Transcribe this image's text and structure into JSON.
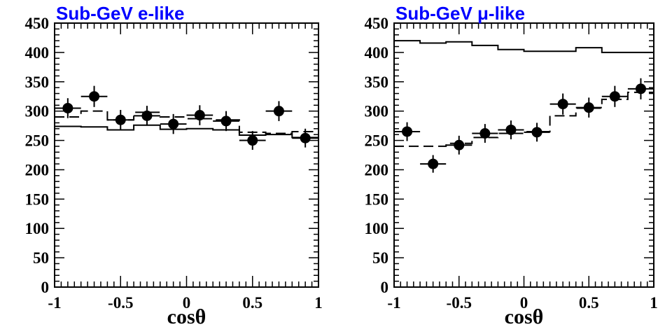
{
  "chart_data": [
    {
      "type": "scatter",
      "title": "Sub-GeV e-like",
      "title_color": "#0000ff",
      "xlabel": "cosθ",
      "ylabel": "",
      "xlim": [
        -1,
        1
      ],
      "ylim": [
        0,
        450
      ],
      "x_ticks": [
        -1,
        -0.5,
        0,
        0.5,
        1
      ],
      "x_tick_labels": [
        "-1",
        "-0.5",
        "0",
        "0.5",
        "1"
      ],
      "y_ticks": [
        0,
        50,
        100,
        150,
        200,
        250,
        300,
        350,
        400,
        450
      ],
      "y_tick_labels": [
        "0",
        "50",
        "100",
        "150",
        "200",
        "250",
        "300",
        "350",
        "400",
        "450"
      ],
      "grid": false,
      "legend": "none",
      "series": [
        {
          "style": "points-with-errorbars",
          "x": [
            -0.9,
            -0.7,
            -0.5,
            -0.3,
            -0.1,
            0.1,
            0.3,
            0.5,
            0.7,
            0.9
          ],
          "y": [
            305,
            325,
            285,
            292,
            278,
            293,
            283,
            250,
            300,
            254
          ],
          "yerr": [
            17,
            18,
            17,
            17,
            17,
            17,
            17,
            16,
            17,
            16
          ]
        },
        {
          "style": "dashed-histogram",
          "bin_edges": [
            -1,
            -0.8,
            -0.6,
            -0.4,
            -0.2,
            0,
            0.2,
            0.4,
            0.6,
            0.8,
            1
          ],
          "values": [
            290,
            300,
            285,
            298,
            290,
            287,
            285,
            264,
            262,
            265
          ]
        },
        {
          "style": "solid-histogram",
          "bin_edges": [
            -1,
            -0.8,
            -0.6,
            -0.4,
            -0.2,
            0,
            0.2,
            0.4,
            0.6,
            0.8,
            1
          ],
          "values": [
            274,
            273,
            268,
            276,
            269,
            270,
            268,
            259,
            260,
            255
          ]
        }
      ]
    },
    {
      "type": "scatter",
      "title": "Sub-GeV μ-like",
      "title_color": "#0000ff",
      "xlabel": "cosθ",
      "ylabel": "",
      "xlim": [
        -1,
        1
      ],
      "ylim": [
        0,
        450
      ],
      "x_ticks": [
        -1,
        -0.5,
        0,
        0.5,
        1
      ],
      "x_tick_labels": [
        "-1",
        "-0.5",
        "0",
        "0.5",
        "1"
      ],
      "y_ticks": [
        0,
        50,
        100,
        150,
        200,
        250,
        300,
        350,
        400,
        450
      ],
      "y_tick_labels": [
        "0",
        "50",
        "100",
        "150",
        "200",
        "250",
        "300",
        "350",
        "400",
        "450"
      ],
      "grid": false,
      "legend": "none",
      "series": [
        {
          "style": "points-with-errorbars",
          "x": [
            -0.9,
            -0.7,
            -0.5,
            -0.3,
            -0.1,
            0.1,
            0.3,
            0.5,
            0.7,
            0.9
          ],
          "y": [
            265,
            210,
            242,
            262,
            268,
            264,
            312,
            306,
            325,
            338
          ],
          "yerr": [
            16,
            15,
            16,
            16,
            16,
            16,
            18,
            17,
            18,
            18
          ]
        },
        {
          "style": "dashed-histogram",
          "bin_edges": [
            -1,
            -0.8,
            -0.6,
            -0.4,
            -0.2,
            0,
            0.2,
            0.4,
            0.6,
            0.8,
            1
          ],
          "values": [
            240,
            240,
            245,
            255,
            262,
            265,
            292,
            305,
            320,
            332
          ]
        },
        {
          "style": "solid-histogram",
          "bin_edges": [
            -1,
            -0.8,
            -0.6,
            -0.4,
            -0.2,
            0,
            0.2,
            0.4,
            0.6,
            0.8,
            1
          ],
          "values": [
            420,
            416,
            418,
            412,
            405,
            402,
            402,
            408,
            400,
            400
          ]
        }
      ]
    }
  ]
}
